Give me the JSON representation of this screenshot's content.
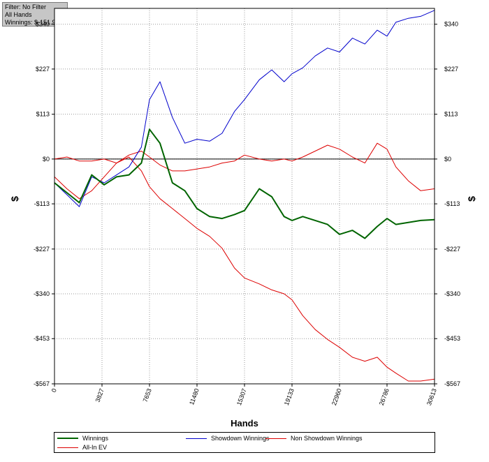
{
  "info_box": {
    "filter": "Filter: No Filter",
    "hands": "All Hands",
    "winnings": "Winnings: $-151.97"
  },
  "chart_data": {
    "type": "line",
    "title": "",
    "xlabel": "Hands",
    "ylabel": "$",
    "xlim": [
      0,
      30613
    ],
    "ylim": [
      -567,
      380
    ],
    "grid": true,
    "legend_position": "bottom",
    "x_ticks": [
      0,
      3827,
      7653,
      11480,
      15307,
      19133,
      22960,
      26786,
      30613
    ],
    "y_ticks": [
      {
        "value": 340,
        "label": "$340"
      },
      {
        "value": 227,
        "label": "$227"
      },
      {
        "value": 113,
        "label": "$113"
      },
      {
        "value": 0,
        "label": "$0"
      },
      {
        "value": -113,
        "label": "-$113"
      },
      {
        "value": -227,
        "label": "-$227"
      },
      {
        "value": -340,
        "label": "-$340"
      },
      {
        "value": -453,
        "label": "-$453"
      },
      {
        "value": -567,
        "label": "-$567"
      }
    ],
    "x": [
      0,
      1000,
      2000,
      3000,
      4000,
      5000,
      6000,
      7000,
      7653,
      8500,
      9500,
      10500,
      11480,
      12500,
      13500,
      14500,
      15307,
      16500,
      17500,
      18500,
      19133,
      20000,
      21000,
      22000,
      22960,
      24000,
      25000,
      26000,
      26786,
      27500,
      28500,
      29500,
      30613
    ],
    "series": [
      {
        "name": "Winnings",
        "color": "#006400",
        "width": 2,
        "values": [
          -60,
          -85,
          -110,
          -40,
          -65,
          -45,
          -40,
          -10,
          75,
          40,
          -60,
          -80,
          -125,
          -145,
          -150,
          -140,
          -130,
          -75,
          -95,
          -145,
          -155,
          -145,
          -155,
          -165,
          -190,
          -180,
          -200,
          -170,
          -150,
          -165,
          -160,
          -155,
          -153
        ]
      },
      {
        "name": "Showdown Winnings",
        "color": "#0000cc",
        "width": 1,
        "values": [
          -60,
          -90,
          -120,
          -45,
          -60,
          -40,
          -20,
          30,
          150,
          195,
          105,
          40,
          50,
          45,
          65,
          120,
          150,
          200,
          225,
          195,
          215,
          230,
          260,
          280,
          270,
          305,
          290,
          325,
          310,
          345,
          355,
          360,
          375
        ]
      },
      {
        "name": "Non Showdown Winnings",
        "color": "#dd0000",
        "width": 1,
        "values": [
          0,
          5,
          -5,
          -5,
          0,
          -10,
          10,
          20,
          5,
          -15,
          -30,
          -30,
          -25,
          -20,
          -10,
          -5,
          10,
          0,
          -5,
          0,
          -5,
          5,
          20,
          35,
          25,
          5,
          -10,
          40,
          25,
          -20,
          -55,
          -80,
          -75
        ]
      },
      {
        "name": "All-In EV",
        "color": "#dd0000",
        "width": 1,
        "values": [
          -45,
          -75,
          -100,
          -80,
          -45,
          -10,
          5,
          -30,
          -70,
          -100,
          -125,
          -150,
          -175,
          -195,
          -225,
          -275,
          -300,
          -315,
          -330,
          -340,
          -355,
          -395,
          -430,
          -455,
          -475,
          -500,
          -510,
          -500,
          -525,
          -540,
          -560,
          -560,
          -555
        ]
      }
    ]
  },
  "legend": [
    {
      "label": "Winnings",
      "color": "#006400"
    },
    {
      "label": "Showdown Winnings",
      "color": "#0000cc"
    },
    {
      "label": "Non Showdown Winnings",
      "color": "#dd0000"
    },
    {
      "label": "All-In EV",
      "color": "#dd0000"
    }
  ]
}
